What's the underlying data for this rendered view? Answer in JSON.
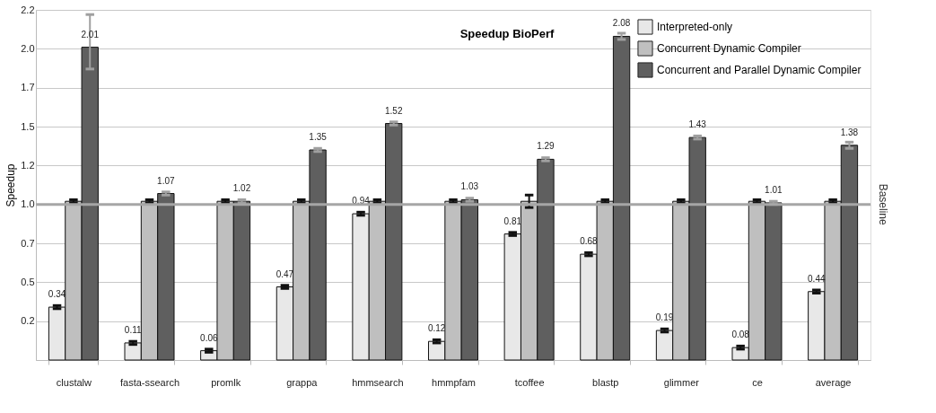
{
  "chart_data": {
    "type": "bar",
    "title": "Speedup BioPerf",
    "ylabel": "Speedup",
    "categories": [
      "clustalw",
      "fasta-ssearch",
      "promlk",
      "grappa",
      "hmmsearch",
      "hmmpfam",
      "tcoffee",
      "blastp",
      "glimmer",
      "ce",
      "average"
    ],
    "series": [
      {
        "name": "Interpreted-only",
        "color": "#e8e8e8",
        "values": [
          0.34,
          0.11,
          0.06,
          0.47,
          0.94,
          0.12,
          0.81,
          0.68,
          0.19,
          0.08,
          0.44
        ],
        "value_labels": [
          "0.34",
          "0.11",
          "0.06",
          "0.47",
          "0.94",
          "0.12",
          "0.81",
          "0.68",
          "0.19",
          "0.08",
          "0.44"
        ],
        "errors": [
          0.01,
          0.01,
          0.01,
          0.01,
          0.01,
          0.01,
          0.01,
          0.01,
          0.01,
          0.01,
          0.01
        ]
      },
      {
        "name": "Concurrent Dynamic Compiler",
        "color": "#bfbfbf",
        "values": [
          1.02,
          1.02,
          1.02,
          1.02,
          1.02,
          1.02,
          1.02,
          1.02,
          1.02,
          1.02,
          1.02
        ],
        "errors": [
          0.01,
          0.01,
          0.01,
          0.01,
          0.01,
          0.01,
          [
            0.98,
            1.06
          ],
          0.01,
          0.01,
          0.01,
          0.01
        ]
      },
      {
        "name": "Concurrent and Parallel Dynamic Compiler",
        "color": "#5f5f5f",
        "values": [
          2.01,
          1.07,
          1.02,
          1.35,
          1.52,
          1.03,
          1.29,
          2.08,
          1.43,
          1.01,
          1.38
        ],
        "value_labels": [
          "2.01",
          "1.07",
          "1.02",
          "1.35",
          "1.52",
          "1.03",
          "1.29",
          "2.08",
          "1.43",
          "1.01",
          "1.38"
        ],
        "errors": [
          [
            1.87,
            2.22
          ],
          0.01,
          0.01,
          0.01,
          0.01,
          0.01,
          0.01,
          0.02,
          0.01,
          0.01,
          0.02
        ]
      }
    ],
    "ylim": [
      0,
      2.25
    ],
    "yticks": [
      {
        "value": 0,
        "label": null
      },
      {
        "value": 0.25,
        "label": "0.2"
      },
      0.5,
      {
        "value": 0.75,
        "label": "0.7"
      },
      {
        "value": 1,
        "label": "1.0"
      },
      {
        "value": 1.25,
        "label": "1.2"
      },
      1.5,
      {
        "value": 1.75,
        "label": "1.7"
      },
      {
        "value": 2,
        "label": "2.0"
      },
      {
        "value": 2.25,
        "label": "2.2"
      }
    ],
    "ref_lines": [
      {
        "axis": "y",
        "value": 1,
        "label": "Baseline",
        "color": "#a6a6a6"
      }
    ],
    "grid": "y",
    "legend": "top right"
  }
}
